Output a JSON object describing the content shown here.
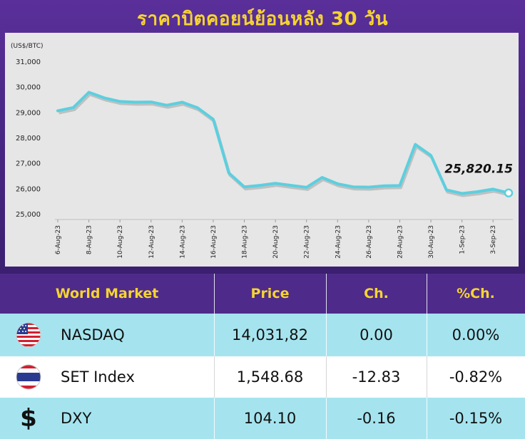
{
  "title": "ราคาบิตคอยน์ย้อนหลัง 30 วัน",
  "chart_data": {
    "type": "line",
    "unit_label": "(US$/BTC)",
    "ylim": [
      25000,
      31000
    ],
    "yticks": [
      "31,000",
      "30,000",
      "29,000",
      "28,000",
      "27,000",
      "26,000",
      "25,000"
    ],
    "ytick_values": [
      31000,
      30000,
      29000,
      28000,
      27000,
      26000,
      25000
    ],
    "xtick_labels": [
      "6-Aug-23",
      "8-Aug-23",
      "10-Aug-23",
      "12-Aug-23",
      "14-Aug-23",
      "16-Aug-23",
      "18-Aug-23",
      "20-Aug-23",
      "22-Aug-23",
      "24-Aug-23",
      "26-Aug-23",
      "28-Aug-23",
      "30-Aug-23",
      "1-Sep-23",
      "3-Sep-23"
    ],
    "x": [
      "6-Aug-23",
      "7-Aug-23",
      "8-Aug-23",
      "9-Aug-23",
      "10-Aug-23",
      "11-Aug-23",
      "12-Aug-23",
      "13-Aug-23",
      "14-Aug-23",
      "15-Aug-23",
      "16-Aug-23",
      "17-Aug-23",
      "18-Aug-23",
      "19-Aug-23",
      "20-Aug-23",
      "21-Aug-23",
      "22-Aug-23",
      "23-Aug-23",
      "24-Aug-23",
      "25-Aug-23",
      "26-Aug-23",
      "27-Aug-23",
      "28-Aug-23",
      "29-Aug-23",
      "30-Aug-23",
      "31-Aug-23",
      "1-Sep-23",
      "2-Sep-23",
      "3-Sep-23",
      "4-Sep-23"
    ],
    "values": [
      29050,
      29180,
      29780,
      29560,
      29420,
      29390,
      29400,
      29270,
      29390,
      29170,
      28720,
      26610,
      26060,
      26120,
      26200,
      26120,
      26040,
      26430,
      26180,
      26060,
      26050,
      26100,
      26110,
      27730,
      27300,
      25940,
      25800,
      25870,
      25970,
      25820.15
    ],
    "last_label": "25,820.15",
    "line_color": "#5ccfdf",
    "grid": false
  },
  "table": {
    "headers": [
      "World Market",
      "Price",
      "Ch.",
      "%Ch."
    ],
    "rows": [
      {
        "icon": "us-flag-icon",
        "name": "NASDAQ",
        "price": "14,031,82",
        "ch": "0.00",
        "pch": "0.00%"
      },
      {
        "icon": "thai-flag-icon",
        "name": "SET Index",
        "price": "1,548.68",
        "ch": "-12.83",
        "pch": "-0.82%"
      },
      {
        "icon": "dollar-sign-icon",
        "icon_text": "$",
        "name": "DXY",
        "price": "104.10",
        "ch": "-0.16",
        "pch": "-0.15%"
      }
    ]
  },
  "colors": {
    "header_bg": "#4e2a8a",
    "header_text": "#f5d431",
    "row_alt": "#a5e4ef",
    "chart_bg": "#e6e6e6"
  }
}
